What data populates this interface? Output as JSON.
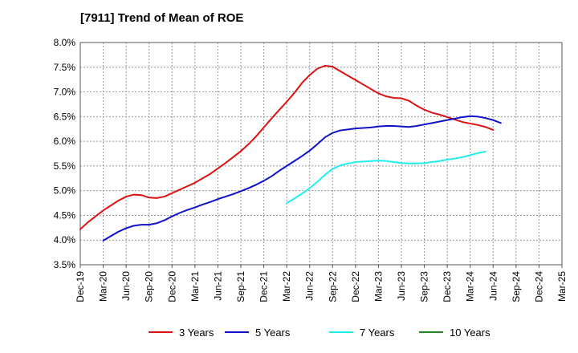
{
  "chart_data": {
    "type": "line",
    "title": "[7911]  Trend of Mean of ROE",
    "xlabel": "",
    "ylabel": "",
    "x_ticks": [
      "Dec-19",
      "Mar-20",
      "Jun-20",
      "Sep-20",
      "Dec-20",
      "Mar-21",
      "Jun-21",
      "Sep-21",
      "Dec-21",
      "Mar-22",
      "Jun-22",
      "Sep-22",
      "Dec-22",
      "Mar-23",
      "Jun-23",
      "Sep-23",
      "Dec-23",
      "Mar-24",
      "Jun-24",
      "Sep-24",
      "Dec-24",
      "Mar-25"
    ],
    "y_ticks": [
      "3.5%",
      "4.0%",
      "4.5%",
      "5.0%",
      "5.5%",
      "6.0%",
      "6.5%",
      "7.0%",
      "7.5%",
      "8.0%"
    ],
    "ylim": [
      3.5,
      8.0
    ],
    "y_unit": "%",
    "grid": true,
    "legend_position": "bottom",
    "series": [
      {
        "name": "3 Years",
        "color": "#dd1111",
        "start_index": 0,
        "values": [
          4.22,
          4.36,
          4.48,
          4.6,
          4.7,
          4.8,
          4.88,
          4.92,
          4.91,
          4.86,
          4.85,
          4.88,
          4.95,
          5.02,
          5.09,
          5.16,
          5.25,
          5.34,
          5.45,
          5.56,
          5.68,
          5.8,
          5.94,
          6.1,
          6.28,
          6.46,
          6.63,
          6.8,
          6.98,
          7.18,
          7.34,
          7.47,
          7.53,
          7.51,
          7.42,
          7.33,
          7.24,
          7.15,
          7.06,
          6.97,
          6.91,
          6.88,
          6.87,
          6.82,
          6.72,
          6.64,
          6.58,
          6.54,
          6.49,
          6.44,
          6.39,
          6.36,
          6.33,
          6.29,
          6.23
        ]
      },
      {
        "name": "5 Years",
        "color": "#1111cc",
        "start_index": 3,
        "values": [
          3.99,
          4.08,
          4.17,
          4.24,
          4.29,
          4.31,
          4.31,
          4.34,
          4.4,
          4.48,
          4.55,
          4.61,
          4.66,
          4.72,
          4.77,
          4.83,
          4.88,
          4.93,
          4.99,
          5.05,
          5.12,
          5.2,
          5.29,
          5.4,
          5.5,
          5.6,
          5.7,
          5.81,
          5.94,
          6.08,
          6.17,
          6.22,
          6.24,
          6.26,
          6.27,
          6.28,
          6.3,
          6.31,
          6.31,
          6.3,
          6.29,
          6.31,
          6.34,
          6.37,
          6.4,
          6.43,
          6.46,
          6.49,
          6.51,
          6.5,
          6.47,
          6.43,
          6.37
        ]
      },
      {
        "name": "7 Years",
        "color": "#22eeee",
        "start_index": 27,
        "values": [
          4.75,
          4.84,
          4.94,
          5.05,
          5.18,
          5.32,
          5.44,
          5.51,
          5.55,
          5.58,
          5.59,
          5.6,
          5.61,
          5.6,
          5.58,
          5.56,
          5.55,
          5.55,
          5.56,
          5.58,
          5.6,
          5.63,
          5.65,
          5.68,
          5.72,
          5.76,
          5.79
        ]
      },
      {
        "name": "10 Years",
        "color": "#228822",
        "start_index": 0,
        "values": []
      }
    ]
  }
}
